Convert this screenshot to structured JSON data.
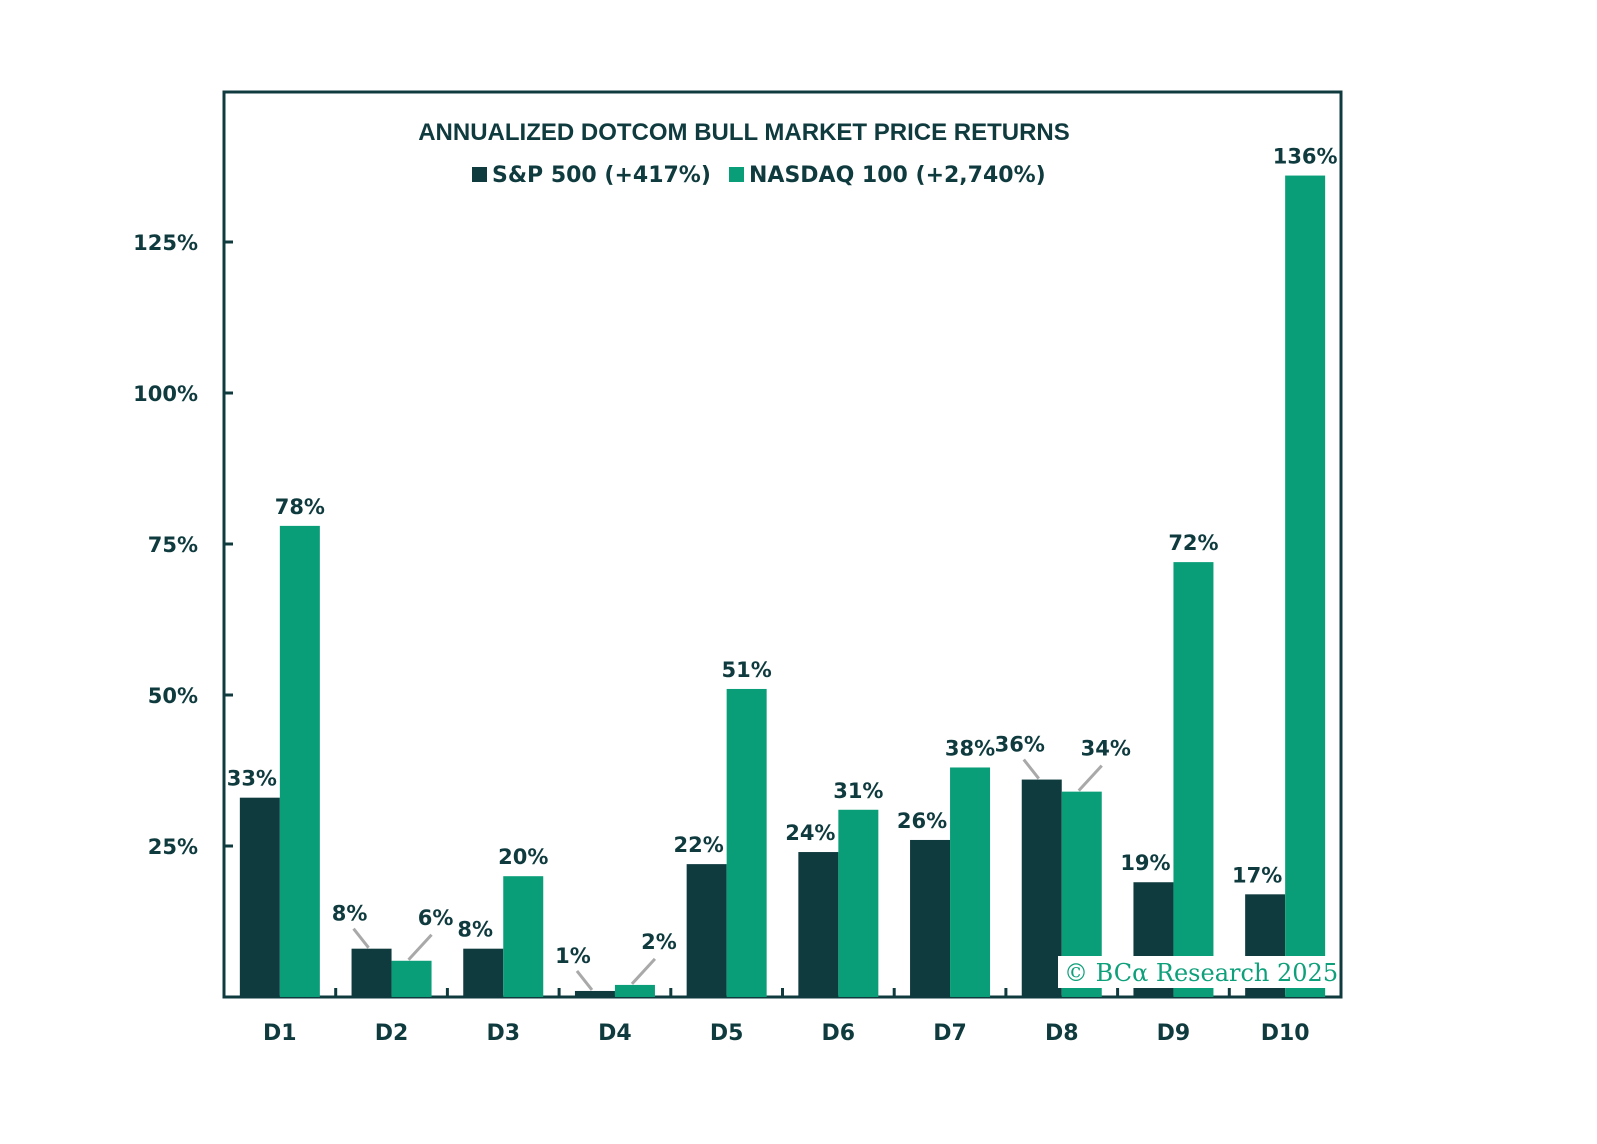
{
  "chart_data": {
    "type": "bar",
    "title": "ANNUALIZED DOTCOM BULL MARKET PRICE RETURNS",
    "xlabel": "",
    "ylabel": "",
    "categories": [
      "D1",
      "D2",
      "D3",
      "D4",
      "D5",
      "D6",
      "D7",
      "D8",
      "D9",
      "D10"
    ],
    "series": [
      {
        "name": "S&P 500 (+417%)",
        "color": "#0f3b3f",
        "values": [
          33,
          8,
          8,
          1,
          22,
          24,
          26,
          36,
          19,
          17
        ],
        "labels": [
          "33%",
          "8%",
          "8%",
          "1%",
          "22%",
          "24%",
          "26%",
          "36%",
          "19%",
          "17%"
        ]
      },
      {
        "name": "NASDAQ 100 (+2,740%)",
        "color": "#0a9e78",
        "values": [
          78,
          6,
          20,
          2,
          51,
          31,
          38,
          34,
          72,
          136
        ],
        "labels": [
          "78%",
          "6%",
          "20%",
          "2%",
          "51%",
          "31%",
          "38%",
          "34%",
          "72%",
          "136%"
        ]
      }
    ],
    "ylim": [
      0,
      150
    ],
    "yticks": [
      25,
      50,
      75,
      100,
      125
    ],
    "ytick_labels": [
      "25%",
      "50%",
      "75%",
      "100%",
      "125%"
    ],
    "grid": false,
    "legend_position": "top-center",
    "annotation": "© BCα Research 2025",
    "colors": {
      "axis": "#0f3b3f",
      "text": "#0f3b3f",
      "leader": "#a9a9a9",
      "watermark": "#0ea07a"
    }
  }
}
